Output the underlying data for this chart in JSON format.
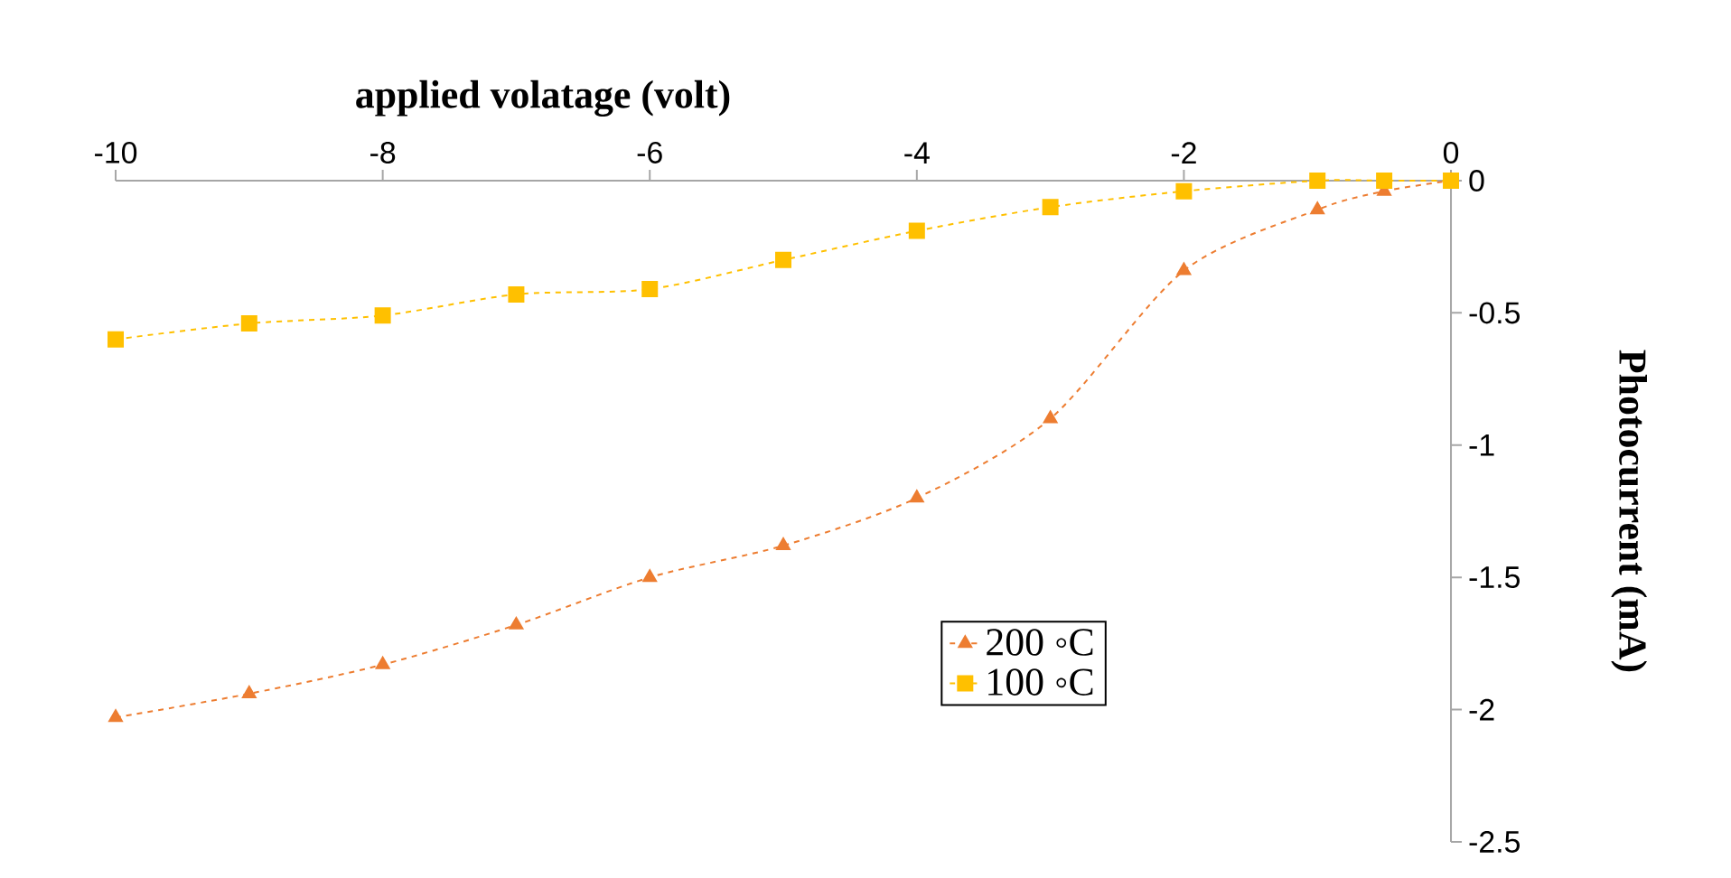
{
  "chart_data": {
    "type": "line",
    "xlabel": "applied volatage (volt)",
    "ylabel": "Photocurrent (mA)",
    "x": [
      -10,
      -9,
      -8,
      -7,
      -6,
      -5,
      -4,
      -3,
      -2,
      -1,
      -0.5,
      0
    ],
    "series": [
      {
        "name": "200 ◦C",
        "color": "#ed7d31",
        "marker": "triangle",
        "values": [
          -2.03,
          -1.94,
          -1.83,
          -1.68,
          -1.5,
          -1.38,
          -1.2,
          -0.9,
          -0.34,
          -0.11,
          -0.04,
          0
        ]
      },
      {
        "name": "100 ◦C",
        "color": "#ffc000",
        "marker": "square",
        "values": [
          -0.6,
          -0.54,
          -0.51,
          -0.43,
          -0.41,
          -0.3,
          -0.19,
          -0.1,
          -0.04,
          0,
          0,
          0
        ]
      }
    ],
    "xlim": [
      -10,
      0
    ],
    "xticks": [
      -10,
      -8,
      -6,
      -4,
      -2,
      0
    ],
    "ylim": [
      -2.5,
      0
    ],
    "yticks": [
      -2.5,
      -2,
      -1.5,
      -1,
      -0.5,
      0
    ],
    "line_style": "dashed",
    "legend": "right",
    "grid": false
  }
}
